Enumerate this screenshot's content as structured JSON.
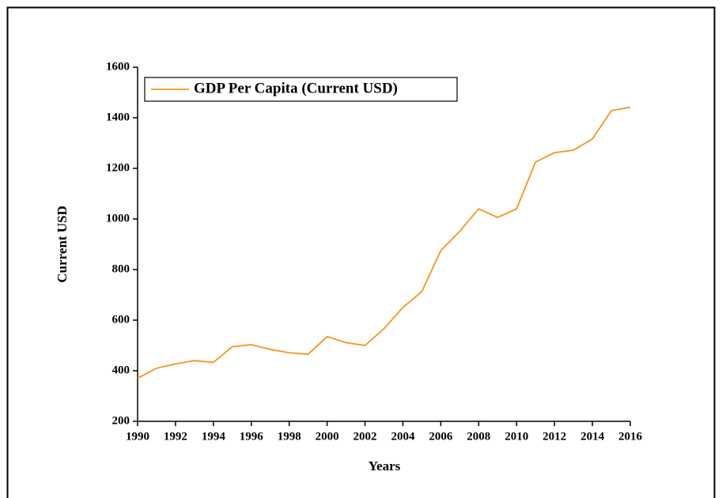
{
  "chart_data": {
    "type": "line",
    "x_label": "Years",
    "y_label": "Current USD",
    "x": [
      1990,
      1991,
      1992,
      1993,
      1994,
      1995,
      1996,
      1997,
      1998,
      1999,
      2000,
      2001,
      2002,
      2003,
      2004,
      2005,
      2006,
      2007,
      2008,
      2009,
      2010,
      2011,
      2012,
      2013,
      2014,
      2015,
      2016
    ],
    "series": [
      {
        "name": "GDP Per Capita (Current USD)",
        "color": "#f7941d",
        "values": [
          370,
          410,
          427,
          440,
          433,
          495,
          503,
          484,
          471,
          465,
          535,
          511,
          500,
          566,
          650,
          713,
          875,
          951,
          1040,
          1006,
          1040,
          1225,
          1262,
          1272,
          1316,
          1428,
          1442
        ]
      }
    ],
    "xlim": [
      1990,
      2016
    ],
    "xticks": [
      1990,
      1992,
      1994,
      1996,
      1998,
      2000,
      2002,
      2004,
      2006,
      2008,
      2010,
      2012,
      2014,
      2016
    ],
    "ylim": [
      200,
      1600
    ],
    "yticks": [
      200,
      400,
      600,
      800,
      1000,
      1200,
      1400,
      1600
    ],
    "legend": "upper-left"
  }
}
